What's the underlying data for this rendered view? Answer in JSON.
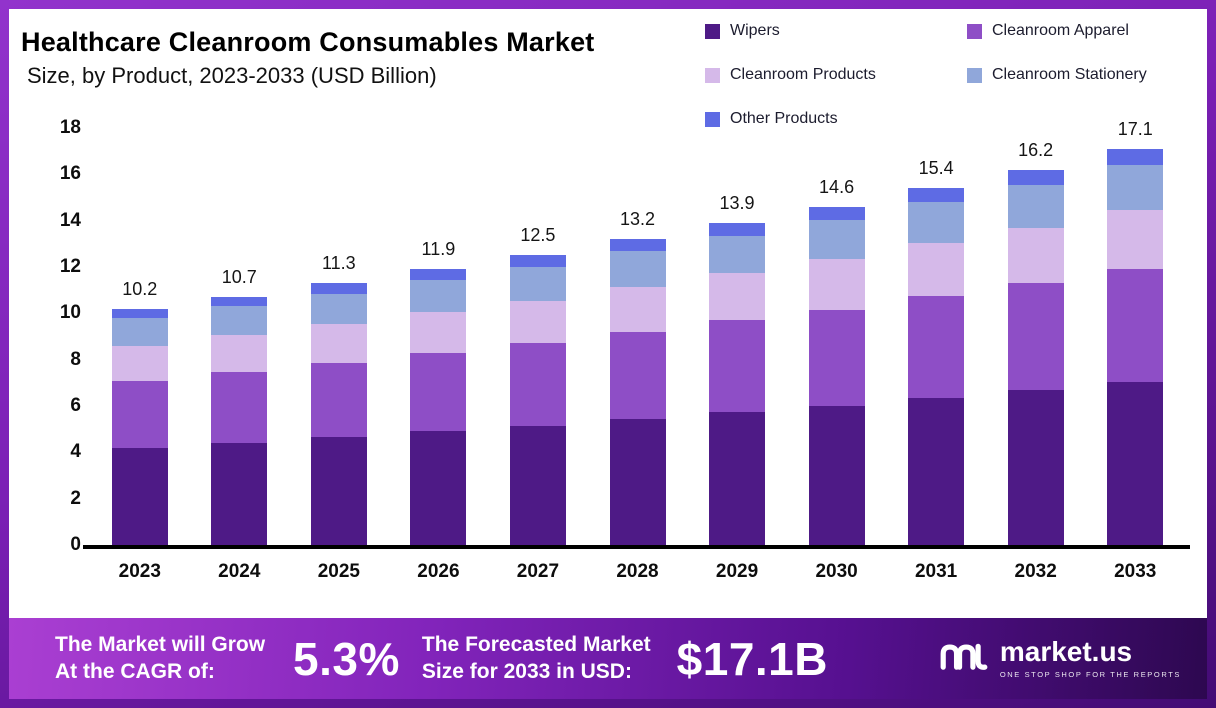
{
  "header": {
    "title": "Healthcare Cleanroom Consumables Market",
    "subtitle": "Size, by Product, 2023-2033 (USD Billion)"
  },
  "chart_data": {
    "type": "bar",
    "stacked": true,
    "title": "Healthcare Cleanroom Consumables Market Size, by Product, 2023-2033 (USD Billion)",
    "categories": [
      "2023",
      "2024",
      "2025",
      "2026",
      "2027",
      "2028",
      "2029",
      "2030",
      "2031",
      "2032",
      "2033"
    ],
    "totals": [
      10.2,
      10.7,
      11.3,
      11.9,
      12.5,
      13.2,
      13.9,
      14.6,
      15.4,
      16.2,
      17.1
    ],
    "series": [
      {
        "name": "Wipers",
        "color": "#4e1a86",
        "values": [
          4.2,
          4.4,
          4.65,
          4.9,
          5.15,
          5.45,
          5.75,
          6.0,
          6.35,
          6.7,
          7.05
        ]
      },
      {
        "name": "Cleanroom Apparel",
        "color": "#8e4ec6",
        "values": [
          2.9,
          3.05,
          3.2,
          3.4,
          3.55,
          3.75,
          3.95,
          4.15,
          4.4,
          4.6,
          4.85
        ]
      },
      {
        "name": "Cleanroom Products",
        "color": "#d5b9e9",
        "values": [
          1.5,
          1.6,
          1.7,
          1.75,
          1.85,
          1.95,
          2.05,
          2.2,
          2.3,
          2.4,
          2.55
        ]
      },
      {
        "name": "Cleanroom Stationery",
        "color": "#90a7da",
        "values": [
          1.2,
          1.25,
          1.3,
          1.4,
          1.45,
          1.55,
          1.6,
          1.7,
          1.75,
          1.85,
          1.95
        ]
      },
      {
        "name": "Other Products",
        "color": "#5e6be4",
        "values": [
          0.4,
          0.4,
          0.45,
          0.45,
          0.5,
          0.5,
          0.55,
          0.55,
          0.6,
          0.65,
          0.7
        ]
      }
    ],
    "xlabel": "",
    "ylabel": "",
    "ylim": [
      0,
      18
    ],
    "ytick_step": 2,
    "grid": false,
    "legend_position": "top-right"
  },
  "footer": {
    "cagr_label_line1": "The Market will Grow",
    "cagr_label_line2": "At the CAGR of:",
    "cagr_value": "5.3%",
    "forecast_label_line1": "The Forecasted Market",
    "forecast_label_line2": "Size for 2033 in USD:",
    "forecast_value": "$17.1B",
    "brand_name": "market.us",
    "brand_tagline": "ONE STOP SHOP FOR THE REPORTS"
  }
}
